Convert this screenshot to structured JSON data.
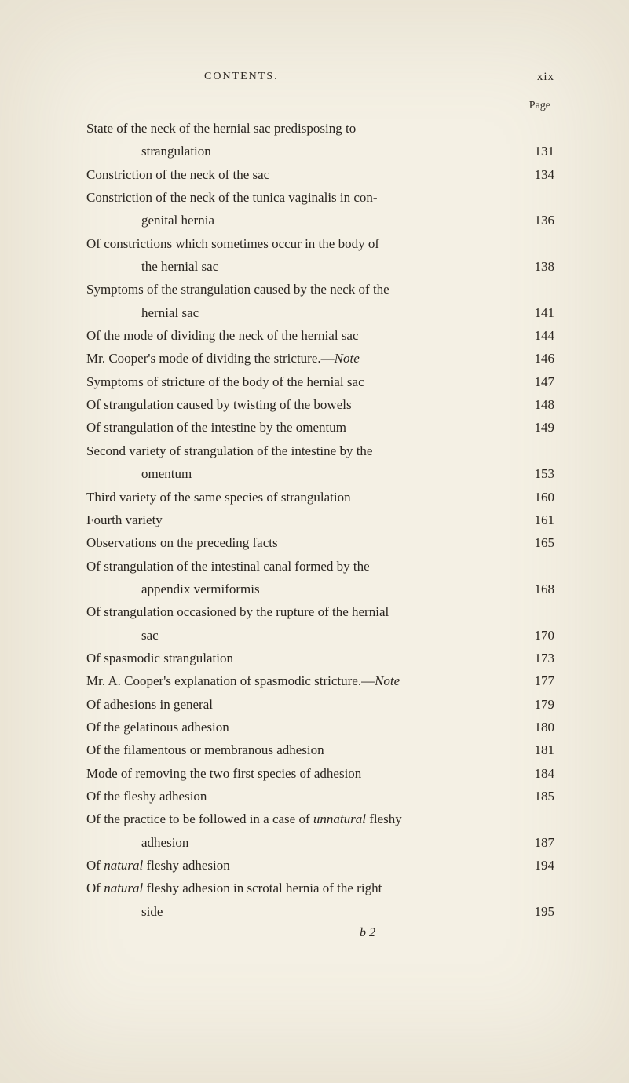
{
  "header": {
    "title": "CONTENTS.",
    "roman": "xix",
    "page_label": "Page"
  },
  "entries": [
    {
      "lines": [
        "State of the neck of the hernial sac predisposing to"
      ],
      "indent_line": "strangulation",
      "page": "131"
    },
    {
      "lines": [
        "Constriction of the neck of the sac"
      ],
      "page": "134"
    },
    {
      "lines": [
        "Constriction of the neck of the tunica vaginalis in con-"
      ],
      "indent_line": "genital hernia",
      "page": "136"
    },
    {
      "lines": [
        "Of constrictions which sometimes occur in the body of"
      ],
      "indent_line": "the hernial sac",
      "page": "138"
    },
    {
      "lines": [
        "Symptoms of the strangulation caused by the neck of the"
      ],
      "indent_line": "hernial sac",
      "page": "141"
    },
    {
      "lines": [
        "Of the mode of dividing the neck of the hernial sac"
      ],
      "page": "144"
    },
    {
      "lines_html": [
        "Mr. Cooper's mode of dividing the stricture.—<span class='italic'>Note</span>"
      ],
      "page": "146"
    },
    {
      "lines": [
        "Symptoms of stricture of the body of the hernial sac"
      ],
      "page": "147"
    },
    {
      "lines": [
        "Of strangulation caused by twisting of the bowels"
      ],
      "page": "148"
    },
    {
      "lines": [
        "Of strangulation of the intestine by the omentum"
      ],
      "page": "149"
    },
    {
      "lines": [
        "Second variety of strangulation of the intestine by the"
      ],
      "indent_line": "omentum",
      "page": "153"
    },
    {
      "lines": [
        "Third variety of the same species of strangulation"
      ],
      "page": "160"
    },
    {
      "lines": [
        "Fourth variety"
      ],
      "page": "161"
    },
    {
      "lines": [
        "Observations on the preceding facts"
      ],
      "page": "165"
    },
    {
      "lines": [
        "Of strangulation of the intestinal canal formed by the"
      ],
      "indent_line": "appendix vermiformis",
      "page": "168"
    },
    {
      "lines": [
        "Of strangulation occasioned by the rupture of the hernial"
      ],
      "indent_line": "sac",
      "page": "170"
    },
    {
      "lines": [
        "Of spasmodic strangulation"
      ],
      "page": "173"
    },
    {
      "lines_html": [
        "Mr. A. Cooper's explanation of spasmodic stricture.—<span class='italic'>Note</span>"
      ],
      "page": "177"
    },
    {
      "lines": [
        "Of adhesions in general"
      ],
      "page": "179"
    },
    {
      "lines": [
        "Of the gelatinous adhesion"
      ],
      "page": "180"
    },
    {
      "lines": [
        "Of the filamentous or membranous adhesion"
      ],
      "page": "181"
    },
    {
      "lines": [
        "Mode of removing the two first species of adhesion"
      ],
      "page": "184"
    },
    {
      "lines": [
        "Of the fleshy adhesion"
      ],
      "page": "185"
    },
    {
      "lines_html": [
        "Of the practice to be followed in a case of <span class='italic'>unnatural</span> fleshy"
      ],
      "indent_line": "adhesion",
      "page": "187"
    },
    {
      "lines_html": [
        "Of <span class='italic'>natural</span> fleshy adhesion"
      ],
      "page": "194"
    },
    {
      "lines_html": [
        "Of <span class='italic'>natural</span> fleshy adhesion in scrotal hernia of the right"
      ],
      "indent_line": "side",
      "page": "195"
    }
  ],
  "signature": "b 2",
  "colors": {
    "background": "#f4f0e4",
    "text": "#2a2520"
  },
  "typography": {
    "body_fontsize": 17,
    "header_fontsize": 14
  }
}
